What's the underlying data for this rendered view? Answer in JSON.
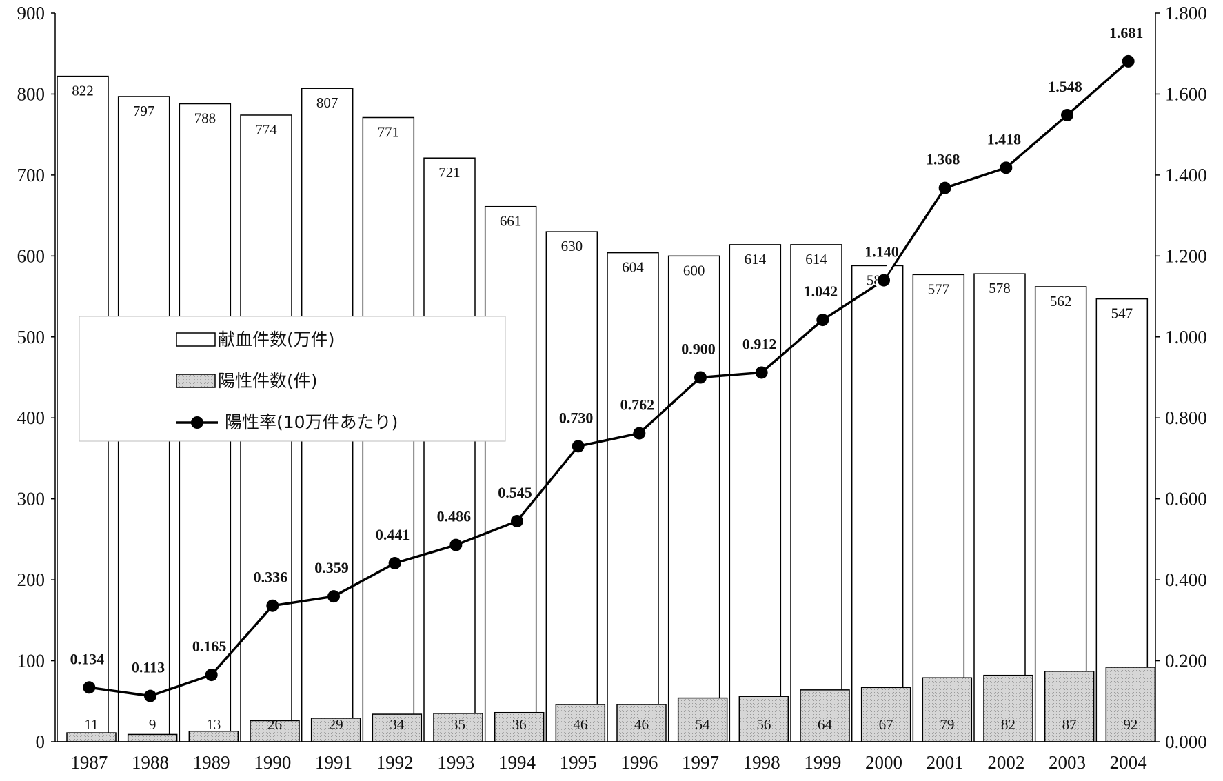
{
  "chart_data": {
    "type": "bar",
    "categories": [
      "1987",
      "1988",
      "1989",
      "1990",
      "1991",
      "1992",
      "1993",
      "1994",
      "1995",
      "1996",
      "1997",
      "1998",
      "1999",
      "2000",
      "2001",
      "2002",
      "2003",
      "2004"
    ],
    "series": [
      {
        "name": "献血件数(万件)",
        "kind": "bar",
        "axis": "left",
        "color": "#ffffff",
        "values": [
          822,
          797,
          788,
          774,
          807,
          771,
          721,
          661,
          630,
          604,
          600,
          614,
          614,
          588,
          577,
          578,
          562,
          547
        ]
      },
      {
        "name": "陽性件数(件)",
        "kind": "bar",
        "axis": "left",
        "color": "#d9d9d9",
        "values": [
          11,
          9,
          13,
          26,
          29,
          34,
          35,
          36,
          46,
          46,
          54,
          56,
          64,
          67,
          79,
          82,
          87,
          92
        ]
      },
      {
        "name": "陽性率(10万件あたり)",
        "kind": "line",
        "axis": "right",
        "color": "#000000",
        "values": [
          0.134,
          0.113,
          0.165,
          0.336,
          0.359,
          0.441,
          0.486,
          0.545,
          0.73,
          0.762,
          0.9,
          0.912,
          1.042,
          1.14,
          1.368,
          1.418,
          1.548,
          1.681
        ],
        "labels": [
          "0.134",
          "0.113",
          "0.165",
          "0.336",
          "0.359",
          "0.441",
          "0.486",
          "0.545",
          "0.730",
          "0.762",
          "0.900",
          "0.912",
          "1.042",
          "1.140",
          "1.368",
          "1.418",
          "1.548",
          "1.681"
        ]
      }
    ],
    "y_left": {
      "min": 0,
      "max": 900,
      "ticks": [
        "0",
        "100",
        "200",
        "300",
        "400",
        "500",
        "600",
        "700",
        "800",
        "900"
      ]
    },
    "y_right": {
      "min": 0,
      "max": 1.8,
      "ticks": [
        "0.000",
        "0.200",
        "0.400",
        "0.600",
        "0.800",
        "1.000",
        "1.200",
        "1.400",
        "1.600",
        "1.800"
      ]
    },
    "legend_position": "left-middle",
    "grid": false
  }
}
